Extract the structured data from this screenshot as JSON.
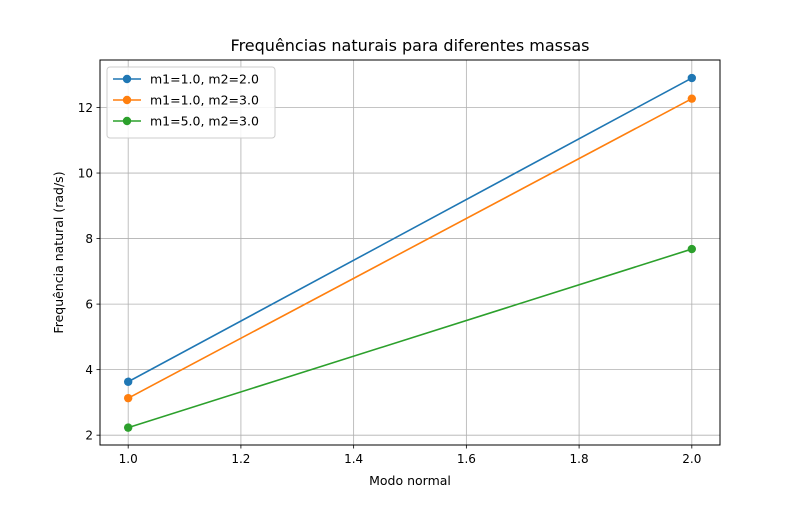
{
  "chart_data": {
    "type": "line",
    "title": "Frequências naturais para diferentes massas",
    "xlabel": "Modo normal",
    "ylabel": "Frequência natural (rad/s)",
    "xlim": [
      0.95,
      2.05
    ],
    "ylim": [
      1.7,
      13.45
    ],
    "x_ticks": [
      1.0,
      1.2,
      1.4,
      1.6,
      1.8,
      2.0
    ],
    "x_tick_labels": [
      "1.0",
      "1.2",
      "1.4",
      "1.6",
      "1.8",
      "2.0"
    ],
    "y_ticks": [
      2,
      4,
      6,
      8,
      10,
      12
    ],
    "y_tick_labels": [
      "2",
      "4",
      "6",
      "8",
      "10",
      "12"
    ],
    "grid": true,
    "legend_position": "upper-left",
    "x": [
      1.0,
      2.0
    ],
    "series": [
      {
        "name": "m1=1.0, m2=2.0",
        "values": [
          3.63,
          12.9
        ],
        "color": "#1f77b4"
      },
      {
        "name": "m1=1.0, m2=3.0",
        "values": [
          3.13,
          12.27
        ],
        "color": "#ff7f0e"
      },
      {
        "name": "m1=5.0, m2=3.0",
        "values": [
          2.23,
          7.68
        ],
        "color": "#2ca02c"
      }
    ]
  }
}
